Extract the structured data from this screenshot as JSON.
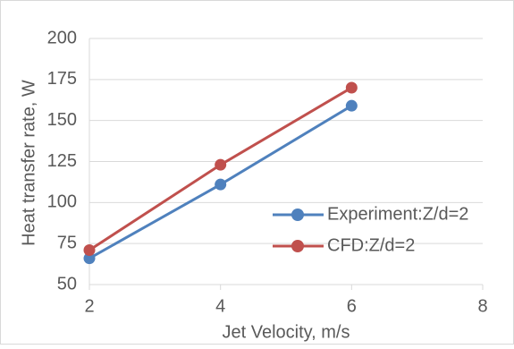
{
  "chart_data": {
    "type": "line",
    "x_label": "Jet Velocity, m/s",
    "y_label": "Heat transfer rate, W",
    "series": [
      {
        "name": "Experiment:Z/d=2",
        "color": "#4f81bd",
        "x": [
          2,
          4,
          6
        ],
        "values": [
          66,
          111,
          159
        ]
      },
      {
        "name": "CFD:Z/d=2",
        "color": "#c0504d",
        "x": [
          2,
          4,
          6
        ],
        "values": [
          71,
          123,
          170
        ]
      }
    ],
    "xlim": [
      2,
      8
    ],
    "xticks": [
      2,
      4,
      6,
      8
    ],
    "ylim": [
      50,
      200
    ],
    "yticks": [
      50,
      75,
      100,
      125,
      150,
      175,
      200
    ],
    "grid": true,
    "legend": "right"
  }
}
